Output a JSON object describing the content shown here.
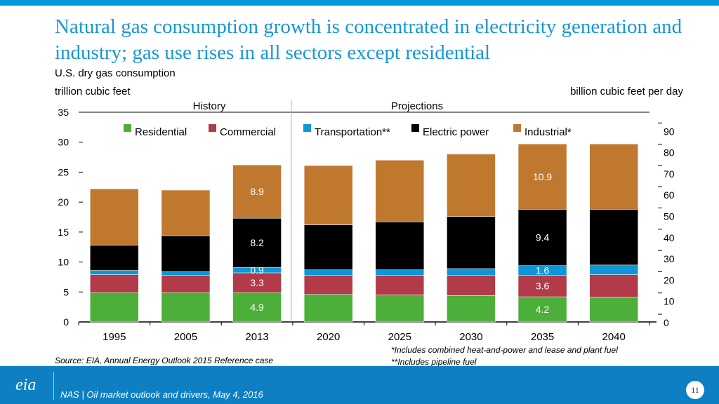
{
  "header": {
    "title": "Natural gas consumption growth is concentrated in electricity generation and industry; gas use rises in all sectors except residential"
  },
  "footer": {
    "source": "Source:  EIA, Annual Energy Outlook 2015 Reference case",
    "note1": "*Includes combined heat-and-power and lease and plant fuel",
    "note2": "**Includes pipeline fuel",
    "presentation": "NAS | Oil market outlook and drivers, May 4, 2016",
    "page": "11",
    "logo": "eia"
  },
  "colors": {
    "Residential": "#4caf3a",
    "Commercial": "#b13b48",
    "Transportation**": "#0e96d6",
    "Electric power": "#000000",
    "Industrial*": "#c0782f"
  },
  "chart_data": {
    "type": "bar",
    "stacked": true,
    "subtitle": "U.S. dry gas consumption",
    "ylabel": "trillion cubic feet",
    "ylabel_right": "billion cubic feet per day",
    "ylim": [
      0,
      35
    ],
    "yticks": [
      0,
      5,
      10,
      15,
      20,
      25,
      30,
      35
    ],
    "ylim_right": [
      0,
      100
    ],
    "yticks_right": [
      0,
      10,
      20,
      30,
      40,
      50,
      60,
      70,
      80,
      90
    ],
    "categories": [
      "1995",
      "2005",
      "2013",
      "2020",
      "2025",
      "2030",
      "2035",
      "2040"
    ],
    "region_labels": {
      "history": "History",
      "projections": "Projections"
    },
    "series": [
      {
        "name": "Residential",
        "values": [
          4.9,
          4.9,
          4.9,
          4.6,
          4.5,
          4.4,
          4.2,
          4.1
        ]
      },
      {
        "name": "Commercial",
        "values": [
          3.0,
          2.9,
          3.3,
          3.2,
          3.3,
          3.4,
          3.6,
          3.8
        ]
      },
      {
        "name": "Transportation**",
        "values": [
          0.7,
          0.6,
          0.9,
          0.9,
          0.9,
          1.1,
          1.6,
          1.6
        ]
      },
      {
        "name": "Electric power",
        "values": [
          4.2,
          6.0,
          8.2,
          7.5,
          8.0,
          8.7,
          9.4,
          9.3
        ]
      },
      {
        "name": "Industrial*",
        "values": [
          9.4,
          7.6,
          8.9,
          9.9,
          10.3,
          10.4,
          10.9,
          10.9
        ]
      }
    ],
    "data_labels": [
      {
        "category": "2013",
        "series": "Residential",
        "text": "4.9"
      },
      {
        "category": "2013",
        "series": "Commercial",
        "text": "3.3"
      },
      {
        "category": "2013",
        "series": "Transportation**",
        "text": "0.9"
      },
      {
        "category": "2013",
        "series": "Electric power",
        "text": "8.2"
      },
      {
        "category": "2013",
        "series": "Industrial*",
        "text": "8.9"
      },
      {
        "category": "2035",
        "series": "Residential",
        "text": "4.2"
      },
      {
        "category": "2035",
        "series": "Commercial",
        "text": "3.6"
      },
      {
        "category": "2035",
        "series": "Transportation**",
        "text": "1.6"
      },
      {
        "category": "2035",
        "series": "Electric power",
        "text": "9.4"
      },
      {
        "category": "2035",
        "series": "Industrial*",
        "text": "10.9"
      }
    ]
  }
}
